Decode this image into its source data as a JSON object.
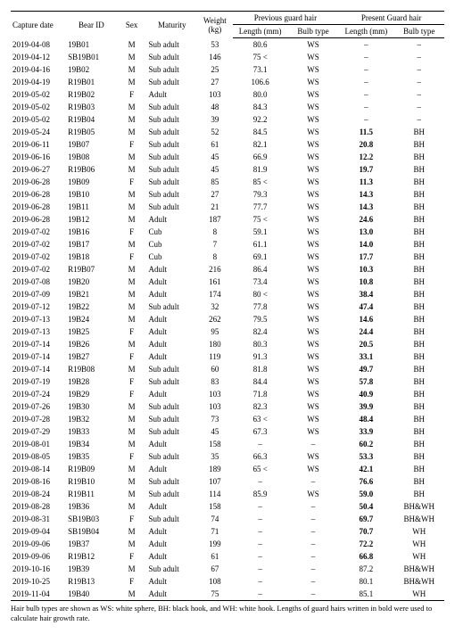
{
  "headers": {
    "capture_date": "Capture date",
    "bear_id": "Bear ID",
    "sex": "Sex",
    "maturity": "Maturity",
    "weight": "Weight (kg)",
    "prev_group": "Previous guard hair",
    "pres_group": "Present Guard hair",
    "length": "Length (mm)",
    "bulb": "Bulb type"
  },
  "footnote": "Hair bulb types are shown as WS: white sphere, BH: black hook, and WH: white hook. Lengths of guard hairs written in bold were used to calculate hair growth rate.",
  "rows": [
    {
      "date": "2019-04-08",
      "id": "19B01",
      "sex": "M",
      "mat": "Sub adult",
      "wt": "53",
      "plen": "80.6",
      "pbulb": "WS",
      "clen": "–",
      "cbulb": "–",
      "b": false
    },
    {
      "date": "2019-04-12",
      "id": "SB19B01",
      "sex": "M",
      "mat": "Sub adult",
      "wt": "146",
      "plen": "75 <",
      "pbulb": "WS",
      "clen": "–",
      "cbulb": "–",
      "b": false
    },
    {
      "date": "2019-04-16",
      "id": "19B02",
      "sex": "M",
      "mat": "Sub adult",
      "wt": "25",
      "plen": "73.1",
      "pbulb": "WS",
      "clen": "–",
      "cbulb": "–",
      "b": false
    },
    {
      "date": "2019-04-19",
      "id": "R19B01",
      "sex": "M",
      "mat": "Sub adult",
      "wt": "27",
      "plen": "106.6",
      "pbulb": "WS",
      "clen": "–",
      "cbulb": "–",
      "b": false
    },
    {
      "date": "2019-05-02",
      "id": "R19B02",
      "sex": "F",
      "mat": "Adult",
      "wt": "103",
      "plen": "80.0",
      "pbulb": "WS",
      "clen": "–",
      "cbulb": "–",
      "b": false
    },
    {
      "date": "2019-05-02",
      "id": "R19B03",
      "sex": "M",
      "mat": "Sub adult",
      "wt": "48",
      "plen": "84.3",
      "pbulb": "WS",
      "clen": "–",
      "cbulb": "–",
      "b": false
    },
    {
      "date": "2019-05-02",
      "id": "R19B04",
      "sex": "M",
      "mat": "Sub adult",
      "wt": "39",
      "plen": "92.2",
      "pbulb": "WS",
      "clen": "–",
      "cbulb": "–",
      "b": false
    },
    {
      "date": "2019-05-24",
      "id": "R19B05",
      "sex": "M",
      "mat": "Sub adult",
      "wt": "52",
      "plen": "84.5",
      "pbulb": "WS",
      "clen": "11.5",
      "cbulb": "BH",
      "b": true
    },
    {
      "date": "2019-06-11",
      "id": "19B07",
      "sex": "F",
      "mat": "Sub adult",
      "wt": "61",
      "plen": "82.1",
      "pbulb": "WS",
      "clen": "20.8",
      "cbulb": "BH",
      "b": true
    },
    {
      "date": "2019-06-16",
      "id": "19B08",
      "sex": "M",
      "mat": "Sub adult",
      "wt": "45",
      "plen": "66.9",
      "pbulb": "WS",
      "clen": "12.2",
      "cbulb": "BH",
      "b": true
    },
    {
      "date": "2019-06-27",
      "id": "R19B06",
      "sex": "M",
      "mat": "Sub adult",
      "wt": "45",
      "plen": "81.9",
      "pbulb": "WS",
      "clen": "19.7",
      "cbulb": "BH",
      "b": true
    },
    {
      "date": "2019-06-28",
      "id": "19B09",
      "sex": "F",
      "mat": "Sub adult",
      "wt": "85",
      "plen": "85 <",
      "pbulb": "WS",
      "clen": "11.3",
      "cbulb": "BH",
      "b": true
    },
    {
      "date": "2019-06-28",
      "id": "19B10",
      "sex": "M",
      "mat": "Sub adult",
      "wt": "27",
      "plen": "79.3",
      "pbulb": "WS",
      "clen": "14.3",
      "cbulb": "BH",
      "b": true
    },
    {
      "date": "2019-06-28",
      "id": "19B11",
      "sex": "M",
      "mat": "Sub adult",
      "wt": "21",
      "plen": "77.7",
      "pbulb": "WS",
      "clen": "14.3",
      "cbulb": "BH",
      "b": true
    },
    {
      "date": "2019-06-28",
      "id": "19B12",
      "sex": "M",
      "mat": "Adult",
      "wt": "187",
      "plen": "75 <",
      "pbulb": "WS",
      "clen": "24.6",
      "cbulb": "BH",
      "b": true
    },
    {
      "date": "2019-07-02",
      "id": "19B16",
      "sex": "F",
      "mat": "Cub",
      "wt": "8",
      "plen": "59.1",
      "pbulb": "WS",
      "clen": "13.0",
      "cbulb": "BH",
      "b": true
    },
    {
      "date": "2019-07-02",
      "id": "19B17",
      "sex": "M",
      "mat": "Cub",
      "wt": "7",
      "plen": "61.1",
      "pbulb": "WS",
      "clen": "14.0",
      "cbulb": "BH",
      "b": true
    },
    {
      "date": "2019-07-02",
      "id": "19B18",
      "sex": "F",
      "mat": "Cub",
      "wt": "8",
      "plen": "69.1",
      "pbulb": "WS",
      "clen": "17.7",
      "cbulb": "BH",
      "b": true
    },
    {
      "date": "2019-07-02",
      "id": "R19B07",
      "sex": "M",
      "mat": "Adult",
      "wt": "216",
      "plen": "86.4",
      "pbulb": "WS",
      "clen": "10.3",
      "cbulb": "BH",
      "b": true
    },
    {
      "date": "2019-07-08",
      "id": "19B20",
      "sex": "M",
      "mat": "Adult",
      "wt": "161",
      "plen": "73.4",
      "pbulb": "WS",
      "clen": "10.8",
      "cbulb": "BH",
      "b": true
    },
    {
      "date": "2019-07-09",
      "id": "19B21",
      "sex": "M",
      "mat": "Adult",
      "wt": "174",
      "plen": "80 <",
      "pbulb": "WS",
      "clen": "38.4",
      "cbulb": "BH",
      "b": true
    },
    {
      "date": "2019-07-12",
      "id": "19B22",
      "sex": "M",
      "mat": "Sub adult",
      "wt": "32",
      "plen": "77.8",
      "pbulb": "WS",
      "clen": "47.4",
      "cbulb": "BH",
      "b": true
    },
    {
      "date": "2019-07-13",
      "id": "19B24",
      "sex": "M",
      "mat": "Adult",
      "wt": "262",
      "plen": "79.5",
      "pbulb": "WS",
      "clen": "14.6",
      "cbulb": "BH",
      "b": true
    },
    {
      "date": "2019-07-13",
      "id": "19B25",
      "sex": "F",
      "mat": "Adult",
      "wt": "95",
      "plen": "82.4",
      "pbulb": "WS",
      "clen": "24.4",
      "cbulb": "BH",
      "b": true
    },
    {
      "date": "2019-07-14",
      "id": "19B26",
      "sex": "M",
      "mat": "Adult",
      "wt": "180",
      "plen": "80.3",
      "pbulb": "WS",
      "clen": "20.5",
      "cbulb": "BH",
      "b": true
    },
    {
      "date": "2019-07-14",
      "id": "19B27",
      "sex": "F",
      "mat": "Adult",
      "wt": "119",
      "plen": "91.3",
      "pbulb": "WS",
      "clen": "33.1",
      "cbulb": "BH",
      "b": true
    },
    {
      "date": "2019-07-14",
      "id": "R19B08",
      "sex": "M",
      "mat": "Sub adult",
      "wt": "60",
      "plen": "81.8",
      "pbulb": "WS",
      "clen": "49.7",
      "cbulb": "BH",
      "b": true
    },
    {
      "date": "2019-07-19",
      "id": "19B28",
      "sex": "F",
      "mat": "Sub adult",
      "wt": "83",
      "plen": "84.4",
      "pbulb": "WS",
      "clen": "57.8",
      "cbulb": "BH",
      "b": true
    },
    {
      "date": "2019-07-24",
      "id": "19B29",
      "sex": "F",
      "mat": "Adult",
      "wt": "103",
      "plen": "71.8",
      "pbulb": "WS",
      "clen": "40.9",
      "cbulb": "BH",
      "b": true
    },
    {
      "date": "2019-07-26",
      "id": "19B30",
      "sex": "M",
      "mat": "Sub adult",
      "wt": "103",
      "plen": "82.3",
      "pbulb": "WS",
      "clen": "39.9",
      "cbulb": "BH",
      "b": true
    },
    {
      "date": "2019-07-28",
      "id": "19B32",
      "sex": "M",
      "mat": "Sub adult",
      "wt": "73",
      "plen": "63 <",
      "pbulb": "WS",
      "clen": "48.4",
      "cbulb": "BH",
      "b": true
    },
    {
      "date": "2019-07-29",
      "id": "19B33",
      "sex": "M",
      "mat": "Sub adult",
      "wt": "45",
      "plen": "67.3",
      "pbulb": "WS",
      "clen": "33.9",
      "cbulb": "BH",
      "b": true
    },
    {
      "date": "2019-08-01",
      "id": "19B34",
      "sex": "M",
      "mat": "Adult",
      "wt": "158",
      "plen": "–",
      "pbulb": "–",
      "clen": "60.2",
      "cbulb": "BH",
      "b": true
    },
    {
      "date": "2019-08-05",
      "id": "19B35",
      "sex": "F",
      "mat": "Sub adult",
      "wt": "35",
      "plen": "66.3",
      "pbulb": "WS",
      "clen": "53.3",
      "cbulb": "BH",
      "b": true
    },
    {
      "date": "2019-08-14",
      "id": "R19B09",
      "sex": "M",
      "mat": "Adult",
      "wt": "189",
      "plen": "65 <",
      "pbulb": "WS",
      "clen": "42.1",
      "cbulb": "BH",
      "b": true
    },
    {
      "date": "2019-08-16",
      "id": "R19B10",
      "sex": "M",
      "mat": "Sub adult",
      "wt": "107",
      "plen": "–",
      "pbulb": "–",
      "clen": "76.6",
      "cbulb": "BH",
      "b": true
    },
    {
      "date": "2019-08-24",
      "id": "R19B11",
      "sex": "M",
      "mat": "Sub adult",
      "wt": "114",
      "plen": "85.9",
      "pbulb": "WS",
      "clen": "59.0",
      "cbulb": "BH",
      "b": true
    },
    {
      "date": "2019-08-28",
      "id": "19B36",
      "sex": "M",
      "mat": "Adult",
      "wt": "158",
      "plen": "–",
      "pbulb": "–",
      "clen": "50.4",
      "cbulb": "BH&WH",
      "b": true
    },
    {
      "date": "2019-08-31",
      "id": "SB19B03",
      "sex": "F",
      "mat": "Sub adult",
      "wt": "74",
      "plen": "–",
      "pbulb": "–",
      "clen": "69.7",
      "cbulb": "BH&WH",
      "b": true
    },
    {
      "date": "2019-09-04",
      "id": "SB19B04",
      "sex": "M",
      "mat": "Adult",
      "wt": "71",
      "plen": "–",
      "pbulb": "–",
      "clen": "70.7",
      "cbulb": "WH",
      "b": true
    },
    {
      "date": "2019-09-06",
      "id": "19B37",
      "sex": "M",
      "mat": "Adult",
      "wt": "199",
      "plen": "–",
      "pbulb": "–",
      "clen": "72.2",
      "cbulb": "WH",
      "b": true
    },
    {
      "date": "2019-09-06",
      "id": "R19B12",
      "sex": "F",
      "mat": "Adult",
      "wt": "61",
      "plen": "–",
      "pbulb": "–",
      "clen": "66.8",
      "cbulb": "WH",
      "b": true
    },
    {
      "date": "2019-10-16",
      "id": "19B39",
      "sex": "M",
      "mat": "Sub adult",
      "wt": "67",
      "plen": "–",
      "pbulb": "–",
      "clen": "87.2",
      "cbulb": "BH&WH",
      "b": false
    },
    {
      "date": "2019-10-25",
      "id": "R19B13",
      "sex": "F",
      "mat": "Adult",
      "wt": "108",
      "plen": "–",
      "pbulb": "–",
      "clen": "80.1",
      "cbulb": "BH&WH",
      "b": false
    },
    {
      "date": "2019-11-04",
      "id": "19B40",
      "sex": "M",
      "mat": "Adult",
      "wt": "75",
      "plen": "–",
      "pbulb": "–",
      "clen": "85.1",
      "cbulb": "WH",
      "b": false
    }
  ]
}
